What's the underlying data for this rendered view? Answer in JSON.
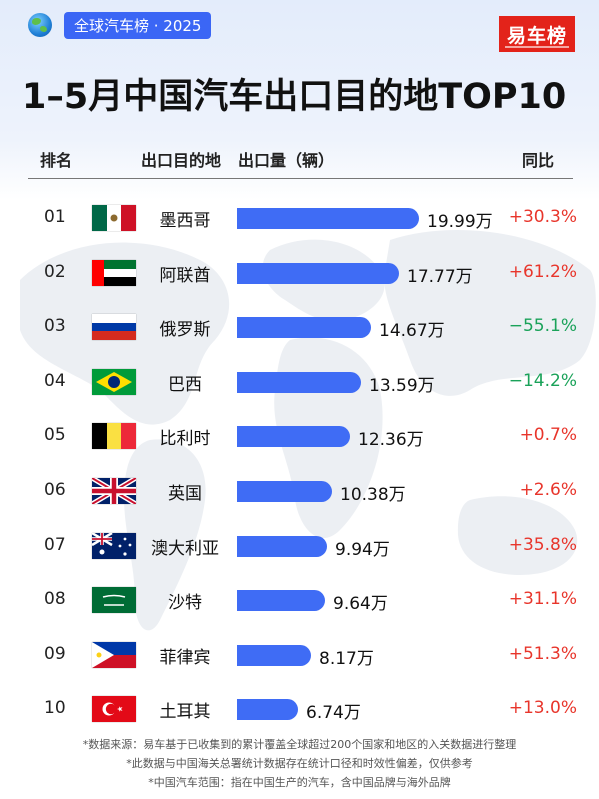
{
  "header": {
    "tag": "全球汽车榜 · 2025",
    "logo": "易车榜",
    "title": "1–5月中国汽车出口目的地TOP10"
  },
  "columns": {
    "rank": "排名",
    "dest": "出口目的地",
    "volume": "出口量（辆）",
    "yoy": "同比"
  },
  "colors": {
    "bar": "#3f6cf5",
    "up": "#e8352b",
    "down": "#1aa259",
    "tag": "#3b66f5",
    "logo": "#e3231a"
  },
  "chart_data": {
    "type": "bar",
    "orientation": "horizontal",
    "unit": "万",
    "categories": [
      "墨西哥",
      "阿联酋",
      "俄罗斯",
      "巴西",
      "比利时",
      "英国",
      "澳大利亚",
      "沙特",
      "菲律宾",
      "土耳其"
    ],
    "ranks": [
      "01",
      "02",
      "03",
      "04",
      "05",
      "06",
      "07",
      "08",
      "09",
      "10"
    ],
    "flags": [
      "mexico-flag",
      "uae-flag",
      "russia-flag",
      "brazil-flag",
      "belgium-flag",
      "uk-flag",
      "australia-flag",
      "saudi-flag",
      "philippines-flag",
      "turkey-flag"
    ],
    "values": [
      19.99,
      17.77,
      14.67,
      13.59,
      12.36,
      10.38,
      9.94,
      9.64,
      8.17,
      6.74
    ],
    "labels": [
      "19.99万",
      "17.77万",
      "14.67万",
      "13.59万",
      "12.36万",
      "10.38万",
      "9.94万",
      "9.64万",
      "8.17万",
      "6.74万"
    ],
    "yoy": [
      "+30.3%",
      "+61.2%",
      "−55.1%",
      "−14.2%",
      "+0.7%",
      "+2.6%",
      "+35.8%",
      "+31.1%",
      "+51.3%",
      "+13.0%"
    ],
    "yoy_direction": [
      "up",
      "up",
      "down",
      "down",
      "up",
      "up",
      "up",
      "up",
      "up",
      "up"
    ]
  },
  "notes": [
    "*数据来源：易车基于已收集到的累计覆盖全球超过200个国家和地区的入关数据进行整理",
    "*此数据与中国海关总署统计数据存在统计口径和时效性偏差，仅供参考",
    "*中国汽车范围：指在中国生产的汽车，含中国品牌与海外品牌"
  ]
}
